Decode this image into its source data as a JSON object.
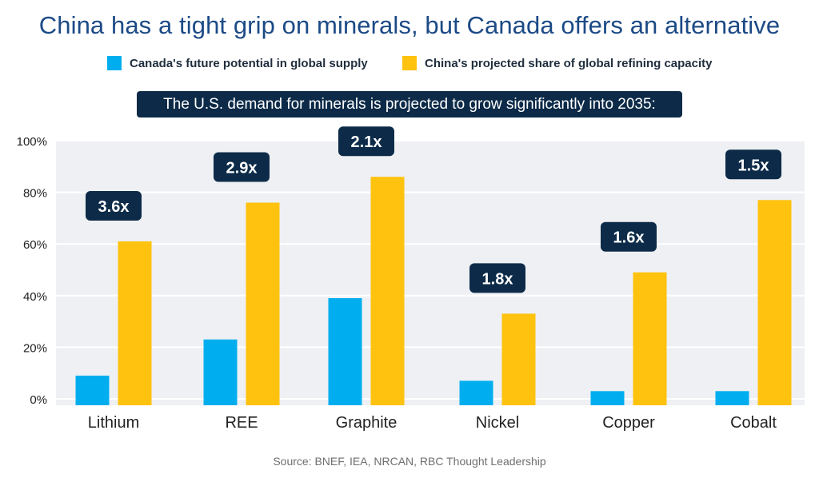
{
  "title": "China has a tight grip on minerals, but Canada offers an alternative",
  "subtitle": "The U.S. demand for minerals is projected to grow significantly into 2035:",
  "source": "Source: BNEF, IEA, NRCAN, RBC Thought Leadership",
  "colors": {
    "canada": "#00aeef",
    "china": "#ffc20e",
    "title": "#1c4a86",
    "badge": "#0d2b48",
    "plot_bg": "#eef0f4"
  },
  "chart_data": {
    "type": "bar",
    "title": "China has a tight grip on minerals, but Canada offers an alternative",
    "xlabel": "",
    "ylabel": "",
    "categories": [
      "Lithium",
      "REE",
      "Graphite",
      "Nickel",
      "Copper",
      "Cobalt"
    ],
    "series": [
      {
        "name": "Canada's future potential in global supply",
        "values": [
          9,
          23,
          39,
          7,
          3,
          3
        ]
      },
      {
        "name": "China's projected share of global refining capacity",
        "values": [
          61,
          76,
          86,
          33,
          49,
          77
        ]
      }
    ],
    "annotations": [
      "3.6x",
      "2.9x",
      "2.1x",
      "1.8x",
      "1.6x",
      "1.5x"
    ],
    "yticks": [
      "0%",
      "20%",
      "40%",
      "60%",
      "80%",
      "100%"
    ],
    "ylim": [
      0,
      100
    ],
    "grid": true,
    "legend": "top"
  }
}
